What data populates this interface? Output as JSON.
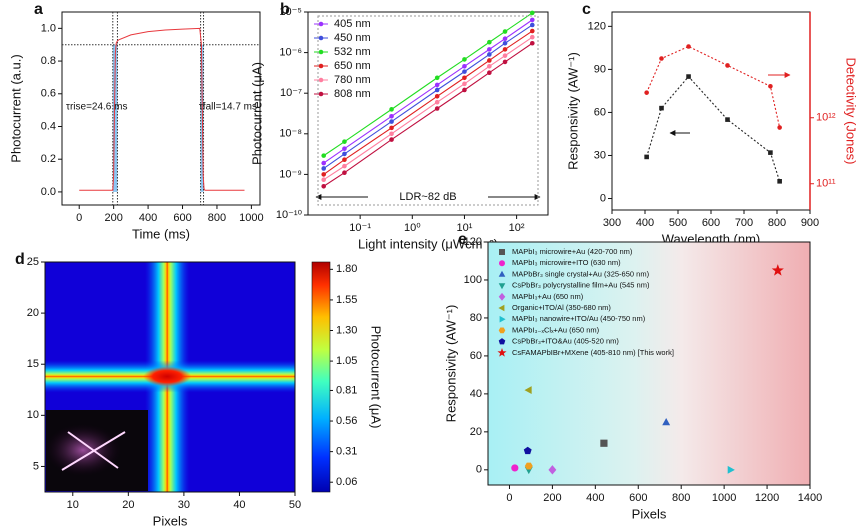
{
  "chart_data": [
    {
      "type": "line",
      "label": "a",
      "xlabel": "Time (ms)",
      "ylabel": "Photocurrent (a.u.)",
      "xlim": [
        -100,
        1050
      ],
      "ylim": [
        -0.08,
        1.1
      ],
      "xticks": [
        0,
        200,
        400,
        600,
        800,
        1000
      ],
      "yticks": [
        {
          "value": 0,
          "label": "0.0"
        },
        0.2,
        0.4,
        0.6,
        0.8,
        {
          "value": 1,
          "label": "1.0"
        }
      ],
      "color": "#e8383d",
      "x": [
        0,
        100,
        195,
        200,
        205,
        210,
        215,
        220,
        230,
        300,
        400,
        500,
        600,
        700,
        710,
        715,
        720,
        725,
        730,
        800,
        900,
        960
      ],
      "values": [
        0.01,
        0.01,
        0.01,
        0.1,
        0.5,
        0.85,
        0.91,
        0.92,
        0.93,
        0.96,
        0.98,
        0.99,
        0.995,
        1.0,
        0.9,
        0.5,
        0.1,
        0.02,
        0.01,
        0.01,
        0.01,
        0.01
      ],
      "hlines": [
        0.9
      ],
      "vlines": [
        195,
        222,
        705,
        722
      ],
      "annotations": [
        "τrise=24.6 ms",
        "τfall=14.7 ms"
      ]
    },
    {
      "type": "line",
      "label": "b",
      "xlabel": "Light intensity (μWcm⁻²)",
      "ylabel": "Photocurrent (μA)",
      "xlog": true,
      "ylog": true,
      "xlim": [
        0.01,
        400
      ],
      "ylim": [
        1e-10,
        1e-05
      ],
      "xticks": [
        {
          "value": 0.1,
          "label": "10⁻¹"
        },
        {
          "value": 1,
          "label": "10⁰"
        },
        {
          "value": 10,
          "label": "10¹"
        },
        {
          "value": 100,
          "label": "10²"
        }
      ],
      "yticks": [
        {
          "value": 1e-10,
          "label": "10⁻¹⁰"
        },
        {
          "value": 1e-09,
          "label": "10⁻⁹"
        },
        {
          "value": 1e-08,
          "label": "10⁻⁸"
        },
        {
          "value": 1e-07,
          "label": "10⁻⁷"
        },
        {
          "value": 1e-06,
          "label": "10⁻⁶"
        },
        {
          "value": 1e-05,
          "label": "10⁻⁵"
        }
      ],
      "annotations": [
        "LDR~82 dB"
      ],
      "series": [
        {
          "name": "405 nm",
          "color": "#9b30ff",
          "x": [
            0.02,
            0.05,
            0.4,
            3,
            10,
            30,
            60,
            200
          ],
          "values": [
            1.9e-09,
            4.3e-09,
            2.7e-08,
            1.6e-07,
            4.6e-07,
            1.2e-06,
            2.2e-06,
            6.4e-06
          ]
        },
        {
          "name": "450 nm",
          "color": "#3f4fdc",
          "x": [
            0.02,
            0.05,
            0.4,
            3,
            10,
            30,
            60,
            200
          ],
          "values": [
            1.4e-09,
            3.2e-09,
            2e-08,
            1.2e-07,
            3.4e-07,
            9e-07,
            1.7e-06,
            4.8e-06
          ]
        },
        {
          "name": "532 nm",
          "color": "#22dd22",
          "x": [
            0.02,
            0.05,
            0.4,
            3,
            10,
            30,
            60,
            200
          ],
          "values": [
            2.9e-09,
            6.4e-09,
            4e-08,
            2.4e-07,
            6.8e-07,
            1.8e-06,
            3.3e-06,
            9.5e-06
          ]
        },
        {
          "name": "650 nm",
          "color": "#e02020",
          "x": [
            0.02,
            0.05,
            0.4,
            3,
            10,
            30,
            60,
            200
          ],
          "values": [
            1e-09,
            2.3e-09,
            1.4e-08,
            8.4e-08,
            2.4e-07,
            6.4e-07,
            1.2e-06,
            3.4e-06
          ]
        },
        {
          "name": "780 nm",
          "color": "#ff7fa0",
          "x": [
            0.02,
            0.05,
            0.4,
            3,
            10,
            30,
            60,
            200
          ],
          "values": [
            7.4e-10,
            1.6e-09,
            1e-08,
            6e-08,
            1.7e-07,
            4.6e-07,
            8.4e-07,
            2.4e-06
          ]
        },
        {
          "name": "808 nm",
          "color": "#c01040",
          "x": [
            0.02,
            0.05,
            0.4,
            3,
            10,
            30,
            60,
            200
          ],
          "values": [
            5.1e-10,
            1.1e-09,
            7.2e-09,
            4.2e-08,
            1.2e-07,
            3.2e-07,
            5.9e-07,
            1.7e-06
          ]
        }
      ]
    },
    {
      "type": "line",
      "label": "c",
      "xlabel": "Wavelength (nm)",
      "ylabel": "Responsivity (AW⁻¹)",
      "y2label": "Detectivity (Jones)",
      "xlim": [
        300,
        900
      ],
      "ylim": [
        -8,
        130
      ],
      "y2log": true,
      "y2lim": [
        40000000000.0,
        40000000000000.0
      ],
      "xticks": [
        300,
        400,
        500,
        600,
        700,
        800,
        900
      ],
      "yticks": [
        0,
        30,
        60,
        90,
        120
      ],
      "y2ticks": [
        {
          "value": 100000000000.0,
          "label": "10¹¹"
        },
        {
          "value": 1000000000000.0,
          "label": "10¹²"
        }
      ],
      "series": [
        {
          "name": "Responsivity",
          "color": "#222222",
          "x": [
            405,
            450,
            532,
            650,
            780,
            808
          ],
          "values": [
            29,
            63,
            85,
            55,
            32,
            12
          ]
        },
        {
          "name": "Detectivity",
          "color": "#e02020",
          "axis": "y2",
          "x": [
            405,
            450,
            532,
            650,
            780,
            808
          ],
          "values": [
            2400000000000.0,
            7900000000000.0,
            12000000000000.0,
            6200000000000.0,
            3000000000000.0,
            710000000000.0
          ]
        }
      ]
    },
    {
      "type": "heatmap",
      "label": "d",
      "xlabel": "Pixels",
      "colorbar_label": "Photocurrent (μA)",
      "xlim": [
        5,
        50
      ],
      "ylim": [
        2.5,
        25
      ],
      "xticks": [
        10,
        20,
        30,
        40,
        50
      ],
      "yticks": [
        5,
        10,
        15,
        20,
        25
      ],
      "peak_x": 27,
      "peak_y": 13.8,
      "clim": [
        -0.02,
        1.86
      ],
      "cticks": [
        0.06,
        0.31,
        0.56,
        0.81,
        1.05,
        {
          "value": 1.3,
          "label": "1.30"
        },
        1.55,
        {
          "value": 1.8,
          "label": "1.80"
        }
      ]
    },
    {
      "type": "scatter",
      "label": "e",
      "xlabel": "Pixels",
      "ylabel": "Responsivity (AW⁻¹)",
      "xlim": [
        -100,
        1400
      ],
      "ylim": [
        -8,
        120
      ],
      "xticks": [
        0,
        200,
        400,
        600,
        800,
        1000,
        1200,
        1400
      ],
      "yticks": [
        0,
        20,
        40,
        60,
        80,
        100,
        120
      ],
      "series": [
        {
          "name": "MAPbI₃ microwire+Au (420-700 nm)",
          "color": "#555555",
          "marker": "square",
          "x": [
            440
          ],
          "values": [
            14
          ]
        },
        {
          "name": "MAPbI₃ microwire+ITO (630 nm)",
          "color": "#ee22cc",
          "marker": "circle",
          "x": [
            25
          ],
          "values": [
            1
          ]
        },
        {
          "name": "MAPbBr₃ single crystal+Au (325-650 nm)",
          "color": "#3060c0",
          "marker": "tri-up",
          "x": [
            730
          ],
          "values": [
            25
          ]
        },
        {
          "name": "CsPbBr₃ polycrystalline film+Au (545 nm)",
          "color": "#20a090",
          "marker": "tri-down",
          "x": [
            90
          ],
          "values": [
            0
          ]
        },
        {
          "name": "MAPbI₃+Au (650 nm)",
          "color": "#c060e0",
          "marker": "diamond",
          "x": [
            200
          ],
          "values": [
            0
          ]
        },
        {
          "name": "Organic+ITO/Al (350-680 nm)",
          "color": "#a0a020",
          "marker": "tri-left",
          "x": [
            90
          ],
          "values": [
            42
          ]
        },
        {
          "name": "MAPbI₃ nanowire+ITO/Au (450-750 nm)",
          "color": "#20c0d0",
          "marker": "tri-right",
          "x": [
            1030
          ],
          "values": [
            0
          ]
        },
        {
          "name": "MAPbI₃₋ₓClₓ+Au (650 nm)",
          "color": "#f0a020",
          "marker": "hexagon",
          "x": [
            90
          ],
          "values": [
            2
          ]
        },
        {
          "name": "CsPbBr₃+ITO&Au (405-520 nm)",
          "color": "#1010a0",
          "marker": "pentagon",
          "x": [
            85
          ],
          "values": [
            10
          ]
        },
        {
          "name": "CsFAMAPbIBr+MXene (405-810 nm) [This work]",
          "color": "#e01010",
          "marker": "star",
          "x": [
            1250
          ],
          "values": [
            105
          ]
        }
      ]
    }
  ]
}
